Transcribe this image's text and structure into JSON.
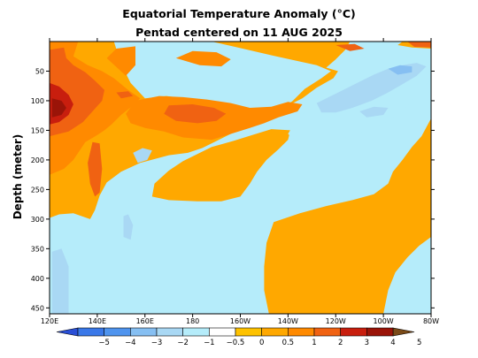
{
  "chart_data": {
    "type": "heatmap",
    "title": "Equatorial Temperature Anomaly (°C)",
    "subtitle": "Pentad centered on 11 AUG 2025",
    "ylabel": "Depth (meter)",
    "xlabel": "",
    "x_range_lon": [
      120,
      280
    ],
    "y_range_depth": [
      0,
      460
    ],
    "y_inverted": true,
    "x_ticks": [
      {
        "lon": 120,
        "label": "120E"
      },
      {
        "lon": 140,
        "label": "140E"
      },
      {
        "lon": 160,
        "label": "160E"
      },
      {
        "lon": 180,
        "label": "180"
      },
      {
        "lon": 200,
        "label": "160W"
      },
      {
        "lon": 220,
        "label": "140W"
      },
      {
        "lon": 240,
        "label": "120W"
      },
      {
        "lon": 260,
        "label": "100W"
      },
      {
        "lon": 280,
        "label": "80W"
      }
    ],
    "y_ticks": [
      {
        "depth": 50,
        "label": "50"
      },
      {
        "depth": 100,
        "label": "100"
      },
      {
        "depth": 150,
        "label": "150"
      },
      {
        "depth": 200,
        "label": "200"
      },
      {
        "depth": 250,
        "label": "250"
      },
      {
        "depth": 300,
        "label": "300"
      },
      {
        "depth": 350,
        "label": "350"
      },
      {
        "depth": 400,
        "label": "400"
      },
      {
        "depth": 450,
        "label": "450"
      }
    ],
    "colorbar": {
      "levels": [
        -5,
        -4,
        -3,
        -2,
        -1,
        -0.5,
        0,
        0.5,
        1,
        2,
        3,
        4,
        5
      ],
      "labels": [
        "−5",
        "−4",
        "−3",
        "−2",
        "−1",
        "−0.5",
        "0",
        "0.5",
        "1",
        "2",
        "3",
        "4",
        "5"
      ],
      "colors": [
        "#2a4fd6",
        "#3a78e8",
        "#4f94ee",
        "#86bff2",
        "#a9d8f4",
        "#b5ecfa",
        "#ffffff",
        "#fec200",
        "#ffa800",
        "#ff8a00",
        "#f06212",
        "#c81e0e",
        "#9a1408",
        "#7a4a18"
      ],
      "extend": "both"
    },
    "regions": [
      {
        "name": "warm-west-fill",
        "level": 0.5,
        "points": [
          [
            120,
            0
          ],
          [
            147,
            0
          ],
          [
            150,
            38
          ],
          [
            154,
            70
          ],
          [
            160,
            96
          ],
          [
            169,
            92
          ],
          [
            180,
            98
          ],
          [
            190,
            108
          ],
          [
            197,
            122
          ],
          [
            203,
            138
          ],
          [
            211,
            132
          ],
          [
            216,
            118
          ],
          [
            222,
            100
          ],
          [
            227,
            80
          ],
          [
            234,
            62
          ],
          [
            238,
            50
          ],
          [
            232,
            40
          ],
          [
            214,
            24
          ],
          [
            201,
            12
          ],
          [
            188,
            0
          ],
          [
            220,
            0
          ],
          [
            246,
            0
          ],
          [
            244,
            14
          ],
          [
            240,
            30
          ],
          [
            236,
            44
          ],
          [
            241,
            50
          ],
          [
            239,
            62
          ],
          [
            232,
            78
          ],
          [
            226,
            96
          ],
          [
            218,
            112
          ],
          [
            212,
            126
          ],
          [
            205,
            140
          ],
          [
            197,
            154
          ],
          [
            190,
            168
          ],
          [
            184,
            180
          ],
          [
            178,
            188
          ],
          [
            170,
            192
          ],
          [
            158,
            205
          ],
          [
            150,
            220
          ],
          [
            144,
            238
          ],
          [
            141,
            260
          ],
          [
            139,
            285
          ],
          [
            137,
            300
          ],
          [
            130,
            290
          ],
          [
            124,
            292
          ],
          [
            120,
            298
          ]
        ]
      },
      {
        "name": "warm-central-tongue",
        "level": 0.5,
        "points": [
          [
            182,
            190
          ],
          [
            188,
            178
          ],
          [
            197,
            168
          ],
          [
            205,
            158
          ],
          [
            213,
            148
          ],
          [
            221,
            150
          ],
          [
            220,
            166
          ],
          [
            216,
            182
          ],
          [
            211,
            200
          ],
          [
            207,
            220
          ],
          [
            204,
            240
          ],
          [
            200,
            262
          ],
          [
            192,
            270
          ],
          [
            182,
            270
          ],
          [
            170,
            268
          ],
          [
            163,
            262
          ],
          [
            164,
            240
          ],
          [
            170,
            218
          ],
          [
            176,
            202
          ]
        ]
      },
      {
        "name": "warm-east-deep",
        "level": 0.5,
        "points": [
          [
            214,
            305
          ],
          [
            225,
            290
          ],
          [
            236,
            278
          ],
          [
            247,
            268
          ],
          [
            256,
            258
          ],
          [
            262,
            240
          ],
          [
            264,
            220
          ],
          [
            268,
            200
          ],
          [
            272,
            178
          ],
          [
            276,
            160
          ],
          [
            280,
            130
          ],
          [
            280,
            330
          ],
          [
            275,
            345
          ],
          [
            270,
            365
          ],
          [
            265,
            390
          ],
          [
            262,
            420
          ],
          [
            260,
            460
          ],
          [
            212,
            460
          ],
          [
            210,
            420
          ],
          [
            210,
            380
          ],
          [
            211,
            340
          ]
        ]
      },
      {
        "name": "warm-far-east-surface",
        "level": 0.5,
        "points": [
          [
            268,
            0
          ],
          [
            280,
            0
          ],
          [
            280,
            12
          ],
          [
            272,
            10
          ],
          [
            266,
            6
          ]
        ]
      },
      {
        "name": "anom-1-west",
        "level": 1,
        "points": [
          [
            120,
            0
          ],
          [
            132,
            0
          ],
          [
            130,
            25
          ],
          [
            136,
            40
          ],
          [
            142,
            50
          ],
          [
            147,
            62
          ],
          [
            153,
            82
          ],
          [
            158,
            96
          ],
          [
            155,
            108
          ],
          [
            150,
            124
          ],
          [
            146,
            140
          ],
          [
            143,
            150
          ],
          [
            140,
            158
          ],
          [
            135,
            170
          ],
          [
            130,
            200
          ],
          [
            126,
            215
          ],
          [
            120,
            225
          ]
        ]
      },
      {
        "name": "anom-1-central",
        "level": 1,
        "points": [
          [
            156,
            100
          ],
          [
            166,
            92
          ],
          [
            176,
            94
          ],
          [
            186,
            98
          ],
          [
            196,
            104
          ],
          [
            204,
            112
          ],
          [
            213,
            110
          ],
          [
            220,
            102
          ],
          [
            226,
            106
          ],
          [
            224,
            118
          ],
          [
            216,
            128
          ],
          [
            210,
            138
          ],
          [
            204,
            146
          ],
          [
            196,
            156
          ],
          [
            188,
            166
          ],
          [
            176,
            162
          ],
          [
            168,
            152
          ],
          [
            160,
            146
          ],
          [
            154,
            138
          ],
          [
            152,
            122
          ]
        ]
      },
      {
        "name": "anom-1-upper",
        "level": 1,
        "points": [
          [
            144,
            28
          ],
          [
            148,
            12
          ],
          [
            156,
            8
          ],
          [
            156,
            40
          ],
          [
            152,
            58
          ]
        ]
      },
      {
        "name": "anom-1-surface",
        "level": 1,
        "points": [
          [
            173,
            28
          ],
          [
            180,
            16
          ],
          [
            190,
            18
          ],
          [
            196,
            30
          ],
          [
            192,
            42
          ],
          [
            183,
            40
          ]
        ]
      },
      {
        "name": "anom-2-west",
        "level": 2,
        "points": [
          [
            120,
            14
          ],
          [
            126,
            10
          ],
          [
            127,
            28
          ],
          [
            130,
            40
          ],
          [
            135,
            52
          ],
          [
            139,
            66
          ],
          [
            143,
            82
          ],
          [
            142,
            100
          ],
          [
            138,
            118
          ],
          [
            134,
            136
          ],
          [
            128,
            152
          ],
          [
            120,
            160
          ]
        ]
      },
      {
        "name": "anom-2-vertical-streak",
        "level": 2,
        "points": [
          [
            138,
            170
          ],
          [
            141,
            172
          ],
          [
            142,
            215
          ],
          [
            141,
            255
          ],
          [
            139,
            262
          ],
          [
            137,
            240
          ],
          [
            136,
            205
          ]
        ]
      },
      {
        "name": "anom-2-central",
        "level": 2,
        "points": [
          [
            170,
            108
          ],
          [
            180,
            106
          ],
          [
            189,
            112
          ],
          [
            194,
            122
          ],
          [
            190,
            134
          ],
          [
            182,
            138
          ],
          [
            173,
            134
          ],
          [
            168,
            122
          ]
        ]
      },
      {
        "name": "anom-2-dot",
        "level": 2,
        "points": [
          [
            148,
            86
          ],
          [
            153,
            84
          ],
          [
            155,
            92
          ],
          [
            150,
            96
          ]
        ]
      },
      {
        "name": "anom-2-right-east",
        "level": 2,
        "points": [
          [
            240,
            6
          ],
          [
            248,
            4
          ],
          [
            252,
            12
          ],
          [
            246,
            16
          ]
        ]
      },
      {
        "name": "anom-2-far-east",
        "level": 2,
        "points": [
          [
            270,
            0
          ],
          [
            280,
            0
          ],
          [
            280,
            10
          ],
          [
            273,
            9
          ]
        ]
      },
      {
        "name": "anom-3-west-core",
        "level": 3,
        "points": [
          [
            120,
            70
          ],
          [
            124,
            76
          ],
          [
            128,
            90
          ],
          [
            130,
            106
          ],
          [
            128,
            124
          ],
          [
            124,
            136
          ],
          [
            120,
            140
          ]
        ]
      },
      {
        "name": "anom-4-west-core",
        "level": 4,
        "points": [
          [
            121,
            96
          ],
          [
            125,
            100
          ],
          [
            127,
            112
          ],
          [
            125,
            124
          ],
          [
            121,
            128
          ]
        ]
      },
      {
        "name": "cool-east-band",
        "level": -0.5,
        "points": [
          [
            224,
            128
          ],
          [
            230,
            112
          ],
          [
            236,
            96
          ],
          [
            244,
            78
          ],
          [
            252,
            62
          ],
          [
            258,
            48
          ],
          [
            264,
            34
          ],
          [
            270,
            24
          ],
          [
            278,
            18
          ],
          [
            280,
            16
          ],
          [
            280,
            64
          ],
          [
            276,
            80
          ],
          [
            272,
            100
          ],
          [
            268,
            118
          ],
          [
            262,
            134
          ],
          [
            254,
            148
          ],
          [
            246,
            160
          ],
          [
            238,
            170
          ],
          [
            230,
            176
          ],
          [
            224,
            170
          ],
          [
            220,
            156
          ]
        ]
      },
      {
        "name": "cool-east-upper",
        "level": -0.5,
        "points": [
          [
            244,
            38
          ],
          [
            252,
            28
          ],
          [
            262,
            26
          ],
          [
            266,
            36
          ],
          [
            260,
            50
          ],
          [
            252,
            60
          ],
          [
            246,
            54
          ]
        ]
      },
      {
        "name": "cool-1-east",
        "level": -1,
        "points": [
          [
            232,
            104
          ],
          [
            238,
            92
          ],
          [
            244,
            80
          ],
          [
            250,
            68
          ],
          [
            256,
            56
          ],
          [
            262,
            46
          ],
          [
            268,
            40
          ],
          [
            274,
            36
          ],
          [
            278,
            42
          ],
          [
            274,
            58
          ],
          [
            268,
            72
          ],
          [
            262,
            86
          ],
          [
            255,
            100
          ],
          [
            247,
            112
          ],
          [
            240,
            120
          ],
          [
            234,
            120
          ]
        ]
      },
      {
        "name": "cool-1-patch",
        "level": -1,
        "points": [
          [
            250,
            118
          ],
          [
            256,
            110
          ],
          [
            262,
            112
          ],
          [
            260,
            124
          ],
          [
            253,
            128
          ]
        ]
      },
      {
        "name": "cool-2-east",
        "level": -2,
        "points": [
          [
            262,
            46
          ],
          [
            267,
            40
          ],
          [
            272,
            42
          ],
          [
            272,
            52
          ],
          [
            266,
            56
          ]
        ]
      },
      {
        "name": "cool-1-west-blob",
        "level": -1,
        "points": [
          [
            155,
            188
          ],
          [
            159,
            180
          ],
          [
            163,
            184
          ],
          [
            161,
            200
          ],
          [
            157,
            205
          ]
        ]
      },
      {
        "name": "cool-1-deep-west",
        "level": -1,
        "points": [
          [
            121,
            355
          ],
          [
            125,
            350
          ],
          [
            128,
            380
          ],
          [
            128,
            460
          ],
          [
            121,
            460
          ]
        ]
      },
      {
        "name": "cool-1-center-streak",
        "level": -1,
        "points": [
          [
            151,
            295
          ],
          [
            153,
            292
          ],
          [
            155,
            310
          ],
          [
            154,
            335
          ],
          [
            151,
            330
          ]
        ]
      }
    ]
  }
}
